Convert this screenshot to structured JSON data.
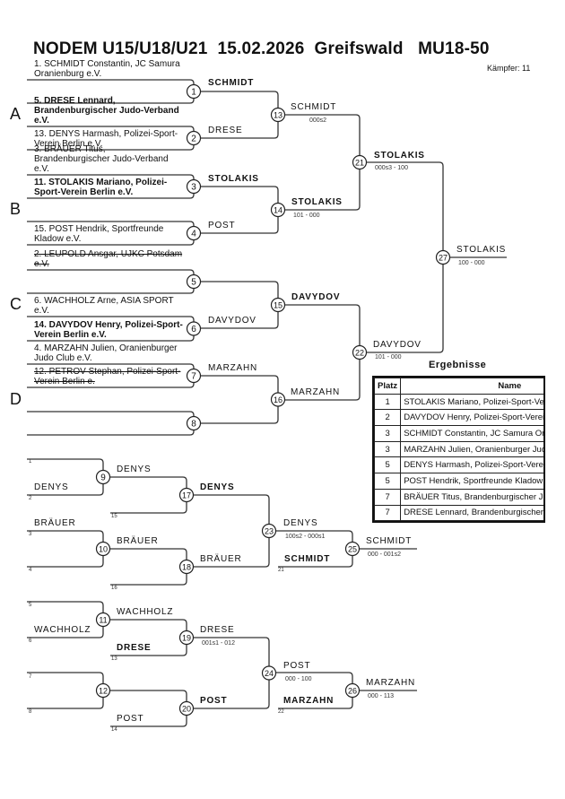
{
  "header": {
    "title": "NODEM U15/U18/U21  15.02.2026  Greifswald   MU18-50",
    "fighters": "Kämpfer: 11"
  },
  "pools": [
    "A",
    "B",
    "C",
    "D"
  ],
  "match_numbers": [
    "1",
    "2",
    "3",
    "4",
    "5",
    "6",
    "7",
    "8",
    "9",
    "10",
    "11",
    "12",
    "13",
    "14",
    "15",
    "16",
    "17",
    "18",
    "19",
    "20",
    "21",
    "22",
    "23",
    "24",
    "25",
    "26",
    "27"
  ],
  "participants": [
    {
      "text": "1. SCHMIDT Constantin, JC Samura Oranienburg e.V.",
      "style": "normal"
    },
    {
      "text": "5. DRESE Lennard, Brandenburgischer Judo-Verband e.V.",
      "style": "bold"
    },
    {
      "text": "13. DENYS Harmash, Polizei-Sport-Verein Berlin e.V.",
      "style": "normal"
    },
    {
      "text": "3. BRÄUER Titus, Brandenburgischer Judo-Verband e.V.",
      "style": "normal"
    },
    {
      "text": "11. STOLAKIS Mariano, Polizei-Sport-Verein Berlin e.V.",
      "style": "bold"
    },
    {
      "text": "15. POST Hendrik, Sportfreunde Kladow e.V.",
      "style": "normal"
    },
    {
      "text": "2. LEUPOLD Ansgar, UJKC Potsdam e.V.",
      "style": "struck"
    },
    {
      "text": "6. WACHHOLZ Arne, ASIA SPORT e.V.",
      "style": "normal"
    },
    {
      "text": "14. DAVYDOV Henry, Polizei-Sport-Verein Berlin e.V.",
      "style": "bold"
    },
    {
      "text": "4. MARZAHN Julien, Oranienburger Judo Club e.V.",
      "style": "normal"
    },
    {
      "text": "12. PETROV Stephan, Polizei-Sport-Verein Berlin e.",
      "style": "struck"
    }
  ],
  "main_winners": {
    "m1": "SCHMIDT",
    "m2": "DRESE",
    "m3": "STOLAKIS",
    "m4": "POST",
    "m6": "DAVYDOV",
    "m7": "MARZAHN",
    "m13": "SCHMIDT",
    "m13_score": "000s2",
    "m14": "STOLAKIS",
    "m14_score": "101 - 000",
    "m15": "DAVYDOV",
    "m16": "MARZAHN",
    "m21": "STOLAKIS",
    "m21_score": "000s3 - 100",
    "m22": "DAVYDOV",
    "m22_score": "101 - 000",
    "m27": "STOLAKIS",
    "m27_score": "100 - 000"
  },
  "repechage": {
    "slots": [
      "1",
      "2",
      "15",
      "3",
      "4",
      "16",
      "21",
      "5",
      "6",
      "13",
      "7",
      "8",
      "14",
      "22"
    ],
    "entries": {
      "m9_b": "DENYS",
      "m10_a": "BRÄUER",
      "m17_b": "",
      "m25_b": "SCHMIDT",
      "m11_b": "WACHHOLZ",
      "m19_b": "DRESE",
      "m20_b": "POST",
      "m26_b": "MARZAHN"
    },
    "winners": {
      "m9": "DENYS",
      "m10": "BRÄUER",
      "m17": "DENYS",
      "m18": "BRÄUER",
      "m23": "DENYS",
      "m23_score": "100s2 - 000s1",
      "m25": "SCHMIDT",
      "m25_score": "000 - 001s2",
      "m11": "WACHHOLZ",
      "m19": "DRESE",
      "m19_score": "001s1 - 012",
      "m20": "POST",
      "m24": "POST",
      "m24_score": "000 - 100",
      "m26": "MARZAHN",
      "m26_score": "000 - 113"
    }
  },
  "results": {
    "title": "Ergebnisse",
    "headers": [
      "Platz",
      "Name"
    ],
    "rows": [
      {
        "place": "1",
        "name": "STOLAKIS Mariano, Polizei-Sport-Verein Berlin e.V."
      },
      {
        "place": "2",
        "name": "DAVYDOV Henry, Polizei-Sport-Verein Berlin e.V."
      },
      {
        "place": "3",
        "name": "SCHMIDT Constantin, JC Samura Oranienburg e.V."
      },
      {
        "place": "3",
        "name": "MARZAHN Julien, Oranienburger Judo Club e.V."
      },
      {
        "place": "5",
        "name": "DENYS Harmash, Polizei-Sport-Verein Berlin e.V."
      },
      {
        "place": "5",
        "name": "POST Hendrik, Sportfreunde Kladow e.V."
      },
      {
        "place": "7",
        "name": "BRÄUER Titus, Brandenburgischer Judo-Verband e.V."
      },
      {
        "place": "7",
        "name": "DRESE Lennard, Brandenburgischer Judo-Verband e.V."
      }
    ]
  }
}
